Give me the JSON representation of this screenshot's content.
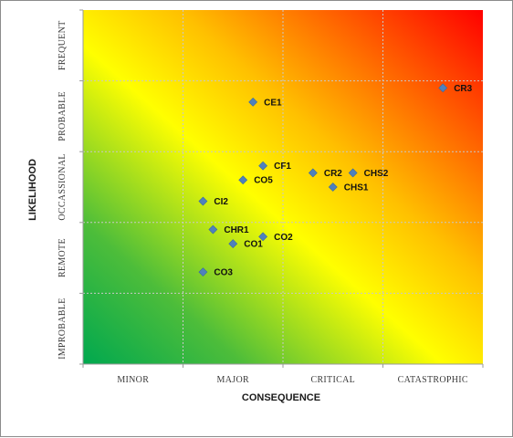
{
  "chart_data": {
    "type": "scatter",
    "title": "",
    "xlabel": "CONSEQUENCE",
    "ylabel": "LIKELIHOOD",
    "x_categories": [
      "MINOR",
      "MAJOR",
      "CRITICAL",
      "CATASTROPHIC"
    ],
    "y_categories": [
      "IMPROBABLE",
      "REMOTE",
      "OCCASSIONAL",
      "PROBABLE",
      "FREQUENT"
    ],
    "xlim": [
      0,
      4
    ],
    "ylim": [
      0,
      5
    ],
    "grid": true,
    "background": "risk gradient (green bottom-left to red top-right)",
    "colors": {
      "low": "#00a84f",
      "mid": "#ffff00",
      "high": "#ff0000",
      "marker": "#4f81bd",
      "grid": "#c8c8c8"
    },
    "points": [
      {
        "label": "CR3",
        "x": 3.6,
        "y": 3.9
      },
      {
        "label": "CE1",
        "x": 1.7,
        "y": 3.7
      },
      {
        "label": "CF1",
        "x": 1.8,
        "y": 2.8
      },
      {
        "label": "CR2",
        "x": 2.3,
        "y": 2.7
      },
      {
        "label": "CHS2",
        "x": 2.7,
        "y": 2.7
      },
      {
        "label": "CO5",
        "x": 1.6,
        "y": 2.6
      },
      {
        "label": "CHS1",
        "x": 2.5,
        "y": 2.5
      },
      {
        "label": "CI2",
        "x": 1.2,
        "y": 2.3
      },
      {
        "label": "CHR1",
        "x": 1.3,
        "y": 1.9
      },
      {
        "label": "CO2",
        "x": 1.8,
        "y": 1.8
      },
      {
        "label": "CO1",
        "x": 1.5,
        "y": 1.7
      },
      {
        "label": "CO3",
        "x": 1.2,
        "y": 1.3
      }
    ]
  }
}
